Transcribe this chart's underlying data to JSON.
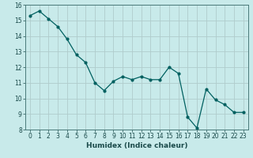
{
  "x": [
    0,
    1,
    2,
    3,
    4,
    5,
    6,
    7,
    8,
    9,
    10,
    11,
    12,
    13,
    14,
    15,
    16,
    17,
    18,
    19,
    20,
    21,
    22,
    23
  ],
  "y": [
    15.3,
    15.6,
    15.1,
    14.6,
    13.8,
    12.8,
    12.3,
    11.0,
    10.5,
    11.1,
    11.4,
    11.2,
    11.4,
    11.2,
    11.2,
    12.0,
    11.6,
    8.8,
    8.1,
    10.6,
    9.9,
    9.6,
    9.1,
    9.1
  ],
  "line_color": "#006060",
  "marker": "o",
  "markersize": 2.0,
  "linewidth": 0.9,
  "xlabel": "Humidex (Indice chaleur)",
  "xlabel_fontsize": 6.5,
  "ylim": [
    8,
    16
  ],
  "yticks": [
    8,
    9,
    10,
    11,
    12,
    13,
    14,
    15,
    16
  ],
  "xticks": [
    0,
    1,
    2,
    3,
    4,
    5,
    6,
    7,
    8,
    9,
    10,
    11,
    12,
    13,
    14,
    15,
    16,
    17,
    18,
    19,
    20,
    21,
    22,
    23
  ],
  "xtick_labels": [
    "0",
    "1",
    "2",
    "3",
    "4",
    "5",
    "6",
    "7",
    "8",
    "9",
    "10",
    "11",
    "12",
    "13",
    "14",
    "15",
    "16",
    "17",
    "18",
    "19",
    "20",
    "21",
    "22",
    "23"
  ],
  "bg_color": "#c8eaea",
  "grid_color": "#b0cccc",
  "axes_color": "#4a7a7a",
  "tick_color": "#1a4a4a",
  "tick_fontsize": 5.5,
  "xlabel_color": "#1a4a4a"
}
